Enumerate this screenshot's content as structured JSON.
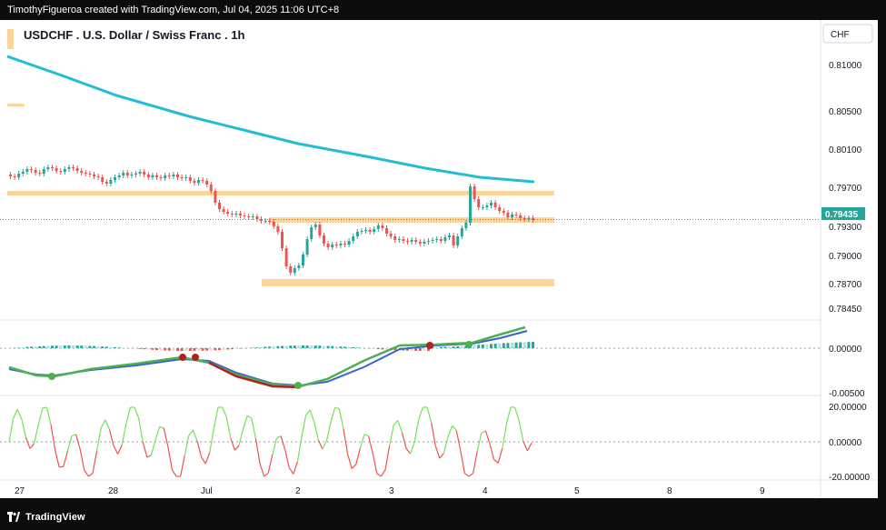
{
  "header": {
    "attribution": "TimothyFigueroa created with TradingView.com, Jul 04, 2025 11:06 UTC+8"
  },
  "chart_title": "USDCHF . U.S. Dollar / Swiss Franc . 1h",
  "currency_button": "CHF",
  "price_axis": {
    "ticks": [
      "0.81000",
      "0.80500",
      "0.80100",
      "0.79700",
      "0.79300",
      "0.79000",
      "0.78700",
      "0.78450"
    ],
    "ylim": [
      0.7835,
      0.8135
    ]
  },
  "current_price": "0.79435",
  "macd_axis": {
    "ticks": [
      "0.00000",
      "-0.00500"
    ]
  },
  "osc_axis": {
    "ticks": [
      "20.00000",
      "0.00000",
      "-20.00000"
    ]
  },
  "time_axis": {
    "labels": [
      "27",
      "28",
      "Jul",
      "2",
      "3",
      "4",
      "5",
      "8",
      "9"
    ]
  },
  "footer": {
    "brand": "TradingView"
  },
  "colors": {
    "up": "#26a69a",
    "down": "#ef5350",
    "ma": "#22bcd5",
    "zone": "#fdd59a",
    "macd_line": "#4caf50",
    "signal_line": "#3a62d0",
    "signal_down": "#b22222",
    "osc_up": "#76e05b",
    "osc_down": "#ef5350"
  },
  "chart_data": {
    "type": "candlestick",
    "symbol": "USDCHF",
    "timeframe": "1h",
    "close_series": [
      0.7991,
      0.799,
      0.7994,
      0.7996,
      0.7999,
      0.7998,
      0.7995,
      0.7994,
      0.7999,
      0.8001,
      0.8,
      0.7997,
      0.7996,
      0.7999,
      0.8001,
      0.8,
      0.7997,
      0.7995,
      0.7994,
      0.7993,
      0.7991,
      0.799,
      0.7985,
      0.7983,
      0.7987,
      0.799,
      0.7992,
      0.7995,
      0.7992,
      0.7993,
      0.7994,
      0.7996,
      0.7993,
      0.799,
      0.7992,
      0.799,
      0.7989,
      0.7992,
      0.7991,
      0.7993,
      0.799,
      0.7989,
      0.799,
      0.7986,
      0.7984,
      0.7987,
      0.7986,
      0.7982,
      0.7975,
      0.7962,
      0.7955,
      0.7952,
      0.795,
      0.7949,
      0.795,
      0.7948,
      0.7947,
      0.7946,
      0.7947,
      0.7944,
      0.7942,
      0.7942,
      0.7941,
      0.7936,
      0.793,
      0.7912,
      0.7892,
      0.7885,
      0.789,
      0.7893,
      0.7905,
      0.7922,
      0.7935,
      0.7938,
      0.7926,
      0.7917,
      0.7913,
      0.7916,
      0.7915,
      0.7917,
      0.7916,
      0.792,
      0.7925,
      0.793,
      0.7931,
      0.7932,
      0.793,
      0.7933,
      0.7937,
      0.7934,
      0.7928,
      0.7925,
      0.7921,
      0.7922,
      0.792,
      0.7919,
      0.7921,
      0.7919,
      0.7917,
      0.7919,
      0.792,
      0.7921,
      0.7922,
      0.792,
      0.7924,
      0.7926,
      0.7915,
      0.7925,
      0.7934,
      0.794,
      0.798,
      0.7966,
      0.7957,
      0.7957,
      0.7959,
      0.7962,
      0.7957,
      0.7953,
      0.7951,
      0.7946,
      0.7949,
      0.7948,
      0.7945,
      0.7944,
      0.7945,
      0.7943
    ],
    "moving_average": [
      [
        0,
        0.8123
      ],
      [
        60,
        0.8102
      ],
      [
        120,
        0.808
      ],
      [
        200,
        0.8057
      ],
      [
        260,
        0.8042
      ],
      [
        320,
        0.8027
      ],
      [
        400,
        0.8012
      ],
      [
        460,
        0.8
      ],
      [
        520,
        0.799
      ],
      [
        580,
        0.7985
      ]
    ],
    "zones": [
      {
        "price_low": 0.797,
        "price_high": 0.7975
      },
      {
        "price_low": 0.794,
        "price_high": 0.7946
      },
      {
        "price_low": 0.787,
        "price_high": 0.7878
      }
    ]
  }
}
